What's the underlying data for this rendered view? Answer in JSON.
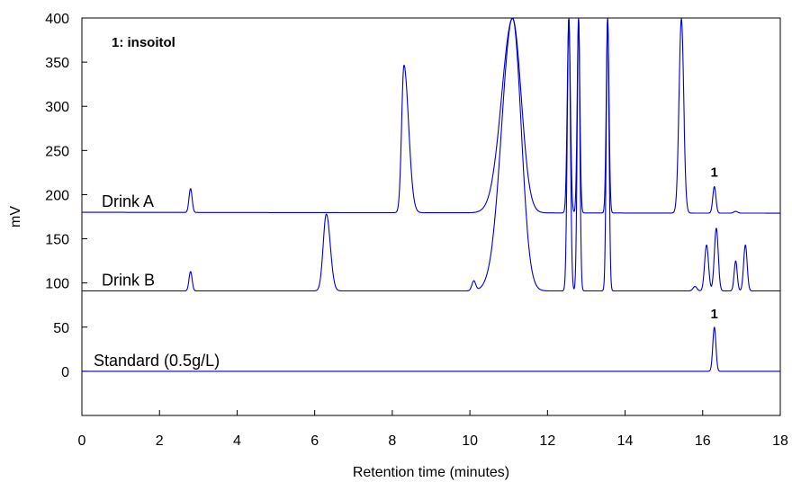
{
  "chart_data": {
    "type": "line",
    "title": "",
    "xlabel": "Retention time (minutes)",
    "ylabel": "mV",
    "xlim": [
      0,
      18
    ],
    "ylim": [
      -50,
      400
    ],
    "x_ticks": [
      0,
      2,
      4,
      6,
      8,
      10,
      12,
      14,
      16,
      18
    ],
    "y_ticks": [
      0,
      50,
      100,
      150,
      200,
      250,
      300,
      350,
      400
    ],
    "grid": false,
    "line_color": "#0000cc",
    "annotation": "1: insoitol",
    "peak_label": "1",
    "series": [
      {
        "name": "Drink A",
        "baseline": 180,
        "end_value": 179,
        "peaks": [
          {
            "x": 2.8,
            "y": 207,
            "width": 0.04
          },
          {
            "x": 8.3,
            "y": 347,
            "width": 0.06,
            "tail": 0.12
          },
          {
            "x": 11.1,
            "y": 400,
            "width": 0.22,
            "front": 0.28
          },
          {
            "x": 12.55,
            "y": 400,
            "width": 0.04
          },
          {
            "x": 12.8,
            "y": 400,
            "width": 0.035
          },
          {
            "x": 13.55,
            "y": 400,
            "width": 0.035
          },
          {
            "x": 15.45,
            "y": 400,
            "width": 0.06
          },
          {
            "x": 16.3,
            "y": 210,
            "width": 0.04
          },
          {
            "x": 16.85,
            "y": 182,
            "width": 0.05
          }
        ]
      },
      {
        "name": "Drink B",
        "baseline": 91,
        "end_value": 91,
        "peaks": [
          {
            "x": 2.8,
            "y": 113,
            "width": 0.04
          },
          {
            "x": 6.3,
            "y": 178,
            "width": 0.08,
            "tail": 0.1
          },
          {
            "x": 10.1,
            "y": 102,
            "width": 0.05
          },
          {
            "x": 11.1,
            "y": 400,
            "width": 0.22,
            "front": 0.28
          },
          {
            "x": 12.55,
            "y": 400,
            "width": 0.04
          },
          {
            "x": 12.8,
            "y": 400,
            "width": 0.035
          },
          {
            "x": 13.55,
            "y": 400,
            "width": 0.035
          },
          {
            "x": 15.8,
            "y": 96,
            "width": 0.05
          },
          {
            "x": 16.1,
            "y": 143,
            "width": 0.05
          },
          {
            "x": 16.35,
            "y": 162,
            "width": 0.05
          },
          {
            "x": 16.85,
            "y": 125,
            "width": 0.04
          },
          {
            "x": 17.1,
            "y": 143,
            "width": 0.045
          }
        ]
      },
      {
        "name": "Standard (0.5g/L)",
        "baseline": 0,
        "end_value": 0,
        "peaks": [
          {
            "x": 16.3,
            "y": 50,
            "width": 0.04
          }
        ]
      }
    ]
  }
}
